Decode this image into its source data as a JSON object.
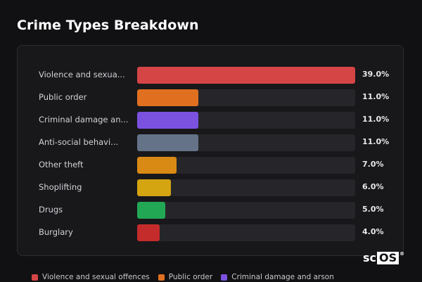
{
  "title": "Crime Types Breakdown",
  "chart_data": {
    "type": "bar",
    "orientation": "horizontal",
    "title": "Crime Types Breakdown",
    "unit": "%",
    "xlim": [
      0,
      39
    ],
    "categories": [
      "Violence and sexua...",
      "Public order",
      "Criminal damage an...",
      "Anti-social behavi...",
      "Other theft",
      "Shoplifting",
      "Drugs",
      "Burglary"
    ],
    "values": [
      39.0,
      11.0,
      11.0,
      11.0,
      7.0,
      6.0,
      5.0,
      4.0
    ],
    "value_labels": [
      "39.0%",
      "11.0%",
      "11.0%",
      "11.0%",
      "7.0%",
      "6.0%",
      "5.0%",
      "4.0%"
    ],
    "colors": [
      "#d64545",
      "#e07020",
      "#7b52e0",
      "#647387",
      "#d98a14",
      "#d4a411",
      "#22a854",
      "#c42b2b"
    ],
    "legend": [
      {
        "label": "Violence and sexual offences",
        "color": "#d64545"
      },
      {
        "label": "Public order",
        "color": "#e07020"
      },
      {
        "label": "Criminal damage and arson",
        "color": "#7b52e0"
      }
    ],
    "legend_position": "bottom"
  },
  "logo": {
    "part1": "sc",
    "part2": "OS",
    "mark": "®"
  }
}
